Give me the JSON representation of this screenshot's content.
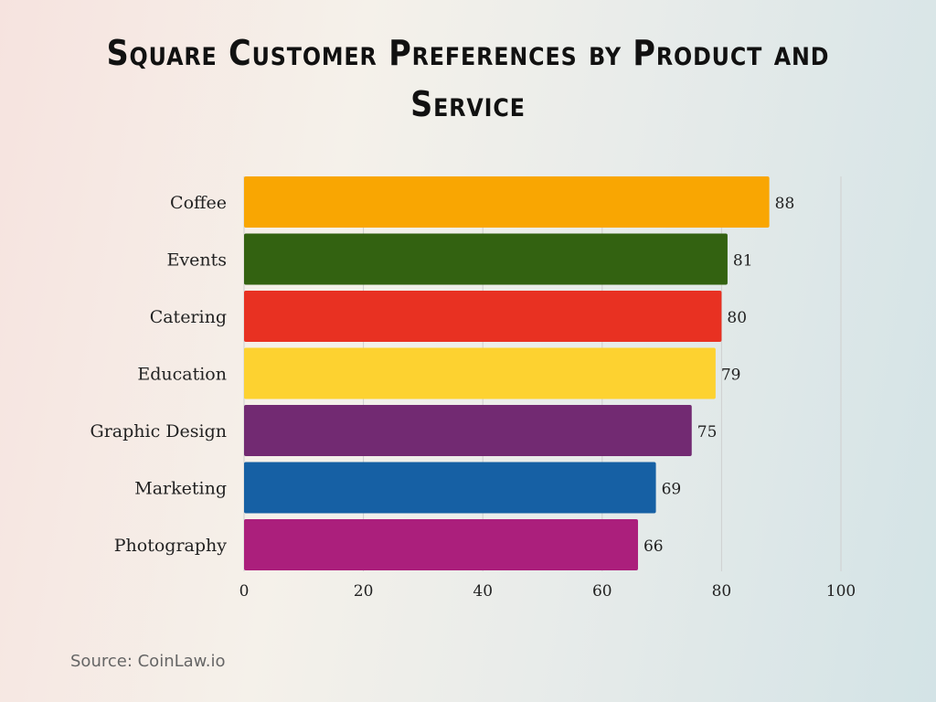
{
  "chart_data": {
    "type": "bar",
    "orientation": "horizontal",
    "title": "Square Customer Preferences by Product and Service",
    "categories": [
      "Coffee",
      "Events",
      "Catering",
      "Education",
      "Graphic Design",
      "Marketing",
      "Photography"
    ],
    "values": [
      88,
      81,
      80,
      79,
      75,
      69,
      66
    ],
    "colors": [
      "#F9A602",
      "#336211",
      "#E83122",
      "#FDD230",
      "#722A72",
      "#1660A4",
      "#AB1F7C"
    ],
    "xlim": [
      0,
      100
    ],
    "xticks": [
      "0",
      "20",
      "40",
      "60",
      "80",
      "100"
    ],
    "grid": true,
    "xlabel": "",
    "ylabel": ""
  },
  "source": "Source: CoinLaw.io"
}
